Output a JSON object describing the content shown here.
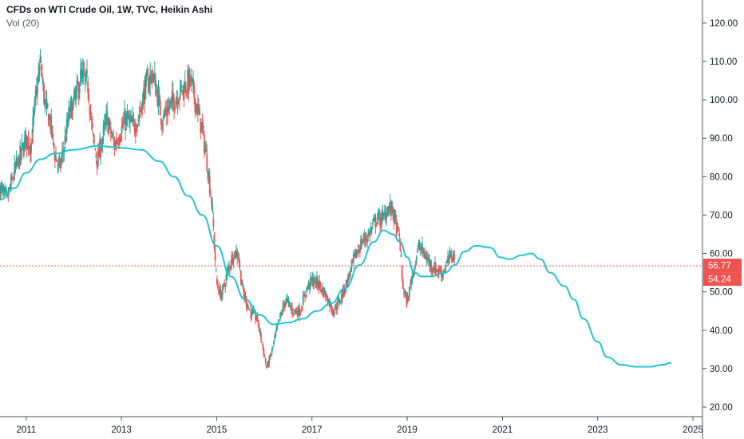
{
  "header": {
    "title": "CFDs on WTI Crude Oil, 1W, TVC, Heikin Ashi",
    "indicator": "Vol (20)"
  },
  "colors": {
    "up": "#26a69a",
    "down": "#ef5350",
    "ma_line": "#22c4cf",
    "price_line": "#ef5350",
    "axis": "#131722",
    "badge": "#ef5350"
  },
  "price_badges": [
    "56.77",
    "54.24"
  ],
  "chart_data": {
    "type": "candlestick",
    "title": "CFDs on WTI Crude Oil, 1W, TVC, Heikin Ashi",
    "xlabel": "",
    "ylabel": "",
    "x_ticks": [
      "2011",
      "2013",
      "2015",
      "2017",
      "2019",
      "2021",
      "2023",
      "2025"
    ],
    "y_ticks": [
      "20.00",
      "30.00",
      "40.00",
      "50.00",
      "60.00",
      "70.00",
      "80.00",
      "90.00",
      "100.00",
      "110.00",
      "120.00"
    ],
    "xlim": [
      2010.45,
      2025.2
    ],
    "ylim": [
      17.5,
      126
    ],
    "last_price": 56.77,
    "second_price": 54.24,
    "grid": false,
    "series": [
      {
        "name": "",
        "kind": "price_path",
        "points": [
          [
            2010.45,
            77
          ],
          [
            2010.6,
            74
          ],
          [
            2010.75,
            81
          ],
          [
            2010.9,
            86
          ],
          [
            2011.0,
            90
          ],
          [
            2011.1,
            88
          ],
          [
            2011.2,
            100
          ],
          [
            2011.3,
            110
          ],
          [
            2011.4,
            98
          ],
          [
            2011.5,
            95
          ],
          [
            2011.6,
            86
          ],
          [
            2011.7,
            82
          ],
          [
            2011.8,
            88
          ],
          [
            2011.9,
            96
          ],
          [
            2012.05,
            101
          ],
          [
            2012.15,
            106
          ],
          [
            2012.3,
            104
          ],
          [
            2012.4,
            90
          ],
          [
            2012.5,
            84
          ],
          [
            2012.6,
            90
          ],
          [
            2012.7,
            95
          ],
          [
            2012.85,
            88
          ],
          [
            2012.95,
            91
          ],
          [
            2013.1,
            95
          ],
          [
            2013.25,
            93
          ],
          [
            2013.35,
            95
          ],
          [
            2013.5,
            103
          ],
          [
            2013.65,
            107
          ],
          [
            2013.75,
            102
          ],
          [
            2013.85,
            95
          ],
          [
            2013.95,
            97
          ],
          [
            2014.1,
            100
          ],
          [
            2014.3,
            103
          ],
          [
            2014.45,
            105
          ],
          [
            2014.55,
            100
          ],
          [
            2014.7,
            92
          ],
          [
            2014.8,
            84
          ],
          [
            2014.9,
            73
          ],
          [
            2015.0,
            52
          ],
          [
            2015.1,
            49
          ],
          [
            2015.25,
            56
          ],
          [
            2015.35,
            60
          ],
          [
            2015.45,
            60
          ],
          [
            2015.55,
            50
          ],
          [
            2015.7,
            45
          ],
          [
            2015.85,
            43
          ],
          [
            2015.95,
            37
          ],
          [
            2016.05,
            30
          ],
          [
            2016.15,
            34
          ],
          [
            2016.3,
            42
          ],
          [
            2016.45,
            48
          ],
          [
            2016.6,
            45
          ],
          [
            2016.75,
            45
          ],
          [
            2016.9,
            51
          ],
          [
            2017.0,
            53
          ],
          [
            2017.15,
            52
          ],
          [
            2017.3,
            49
          ],
          [
            2017.45,
            45
          ],
          [
            2017.6,
            48
          ],
          [
            2017.75,
            53
          ],
          [
            2017.9,
            59
          ],
          [
            2018.05,
            63
          ],
          [
            2018.2,
            65
          ],
          [
            2018.35,
            69
          ],
          [
            2018.5,
            69
          ],
          [
            2018.6,
            72
          ],
          [
            2018.7,
            71
          ],
          [
            2018.85,
            63
          ],
          [
            2018.9,
            52
          ],
          [
            2019.0,
            47
          ],
          [
            2019.1,
            54
          ],
          [
            2019.25,
            62
          ],
          [
            2019.35,
            60
          ],
          [
            2019.5,
            57
          ],
          [
            2019.6,
            56
          ],
          [
            2019.75,
            55
          ],
          [
            2019.9,
            59
          ],
          [
            2020.0,
            60
          ]
        ]
      },
      {
        "name": "",
        "kind": "line",
        "points": [
          [
            2010.45,
            74
          ],
          [
            2010.75,
            77
          ],
          [
            2011.0,
            81
          ],
          [
            2011.3,
            84.5
          ],
          [
            2011.6,
            86
          ],
          [
            2012.0,
            87
          ],
          [
            2012.5,
            88
          ],
          [
            2013.0,
            87.5
          ],
          [
            2013.4,
            87
          ],
          [
            2013.8,
            84
          ],
          [
            2014.1,
            80
          ],
          [
            2014.4,
            75
          ],
          [
            2014.7,
            70
          ],
          [
            2015.0,
            62
          ],
          [
            2015.3,
            54
          ],
          [
            2015.6,
            48
          ],
          [
            2015.9,
            44
          ],
          [
            2016.2,
            41.5
          ],
          [
            2016.5,
            42
          ],
          [
            2016.8,
            43
          ],
          [
            2017.1,
            45
          ],
          [
            2017.4,
            47
          ],
          [
            2017.7,
            51
          ],
          [
            2018.0,
            57
          ],
          [
            2018.3,
            63
          ],
          [
            2018.5,
            66
          ],
          [
            2018.7,
            65
          ],
          [
            2018.85,
            63
          ],
          [
            2019.0,
            59
          ],
          [
            2019.15,
            55
          ],
          [
            2019.3,
            54
          ],
          [
            2019.5,
            54
          ],
          [
            2019.8,
            55
          ],
          [
            2020.0,
            57
          ],
          [
            2020.2,
            60.5
          ],
          [
            2020.45,
            62
          ],
          [
            2020.75,
            61.5
          ],
          [
            2020.95,
            59
          ],
          [
            2021.15,
            58.5
          ],
          [
            2021.4,
            59.5
          ],
          [
            2021.6,
            60
          ],
          [
            2021.8,
            58.5
          ],
          [
            2022.0,
            55
          ],
          [
            2022.3,
            51.5
          ],
          [
            2022.5,
            48
          ],
          [
            2022.7,
            43
          ],
          [
            2023.0,
            37
          ],
          [
            2023.2,
            33
          ],
          [
            2023.5,
            31
          ],
          [
            2023.8,
            30.5
          ],
          [
            2024.1,
            30.5
          ],
          [
            2024.35,
            31
          ],
          [
            2024.55,
            31.5
          ]
        ]
      }
    ]
  }
}
